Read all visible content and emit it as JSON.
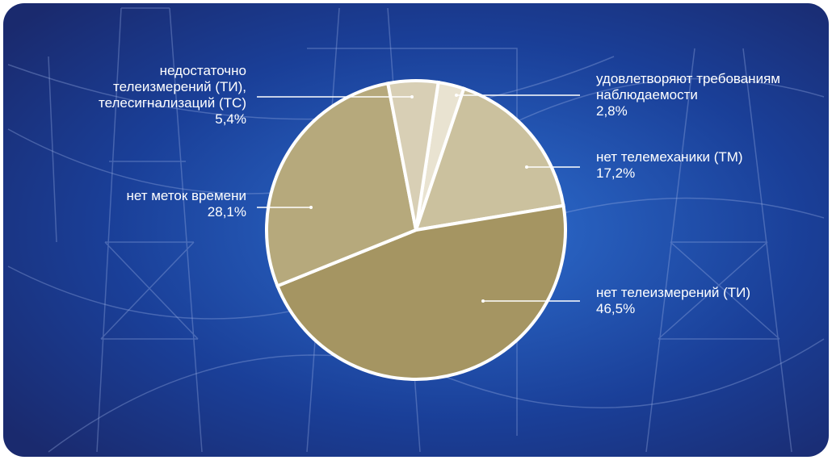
{
  "chart_data": {
    "type": "pie",
    "categories": [
      "удовлетворяют требованиям\nнаблюдаемости",
      "нет телемеханики (ТМ)",
      "нет телеизмерений (ТИ)",
      "нет меток времени",
      "недостаточно\nтелеизмерений (ТИ),\nтелесигнализаций (ТС)"
    ],
    "values": [
      2.8,
      17.2,
      46.5,
      28.1,
      5.4
    ],
    "value_labels": [
      "2,8%",
      "17,2%",
      "46,5%",
      "28,1%",
      "5,4%"
    ],
    "colors": [
      "#e9e3d1",
      "#cbc19e",
      "#a59562",
      "#b6a97c",
      "#d8cfb5"
    ]
  }
}
